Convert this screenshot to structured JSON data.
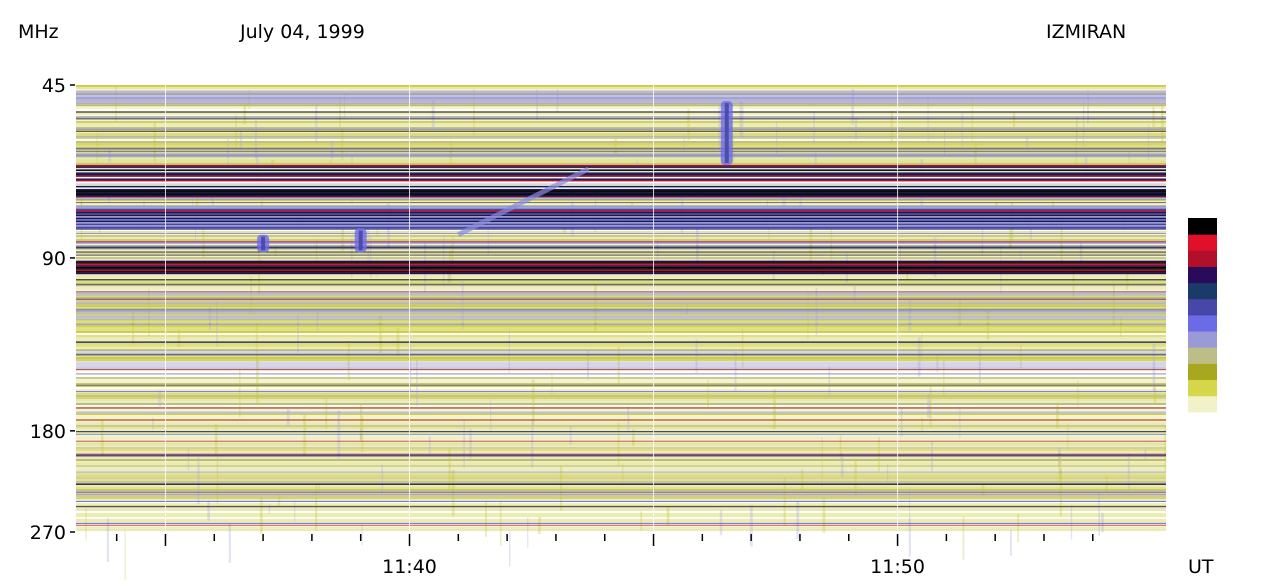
{
  "header": {
    "unit_label": "MHz",
    "date": "July 04, 1999",
    "observatory": "IZMIRAN"
  },
  "chart_data": {
    "type": "heatmap",
    "title": "July 04, 1999",
    "xlabel": "UT",
    "ylabel": "MHz",
    "y_scale": "log",
    "ylim": [
      45,
      270
    ],
    "y_ticks": [
      {
        "value": 45,
        "label": "45"
      },
      {
        "value": 90,
        "label": "90"
      },
      {
        "value": 180,
        "label": "180"
      },
      {
        "value": 270,
        "label": "270"
      }
    ],
    "xlim": [
      "11:33:10",
      "11:55:30"
    ],
    "x_major_ticks": [
      {
        "value": "11:35",
        "label": ""
      },
      {
        "value": "11:40",
        "label": "11:40"
      },
      {
        "value": "11:45",
        "label": ""
      },
      {
        "value": "11:50",
        "label": "11:50"
      }
    ],
    "x_minor_tick_interval_seconds": 60,
    "colorbar": {
      "orientation": "vertical",
      "colors": [
        "#ffffff",
        "#f2f2c8",
        "#d6d64a",
        "#a8a820",
        "#bdbd88",
        "#9a9ad6",
        "#6b6be8",
        "#4747a8",
        "#1a3a6a",
        "#2a0a5a",
        "#b0102a",
        "#e0102a",
        "#000000"
      ]
    },
    "features": [
      {
        "name": "strong emission band",
        "freq_range_mhz": [
          91,
          96
        ],
        "level": "max"
      },
      {
        "name": "intense band",
        "freq_range_mhz": [
          62,
          70
        ],
        "level": "high"
      },
      {
        "name": "interference band",
        "freq_range_mhz": [
          73,
          80
        ],
        "level": "medium-high"
      },
      {
        "name": "burst",
        "time": "11:46:30",
        "freq_range_mhz": [
          48,
          62
        ],
        "level": "medium-high"
      },
      {
        "name": "burst",
        "time": "11:39:00",
        "freq_range_mhz": [
          80,
          88
        ],
        "level": "medium"
      },
      {
        "name": "burst",
        "time": "11:37:00",
        "freq_range_mhz": [
          82,
          88
        ],
        "level": "medium"
      },
      {
        "name": "drifting feature",
        "time_range": [
          "11:41:00",
          "11:43:40"
        ],
        "freq_range_mhz": [
          63,
          82
        ],
        "level": "medium"
      }
    ]
  }
}
